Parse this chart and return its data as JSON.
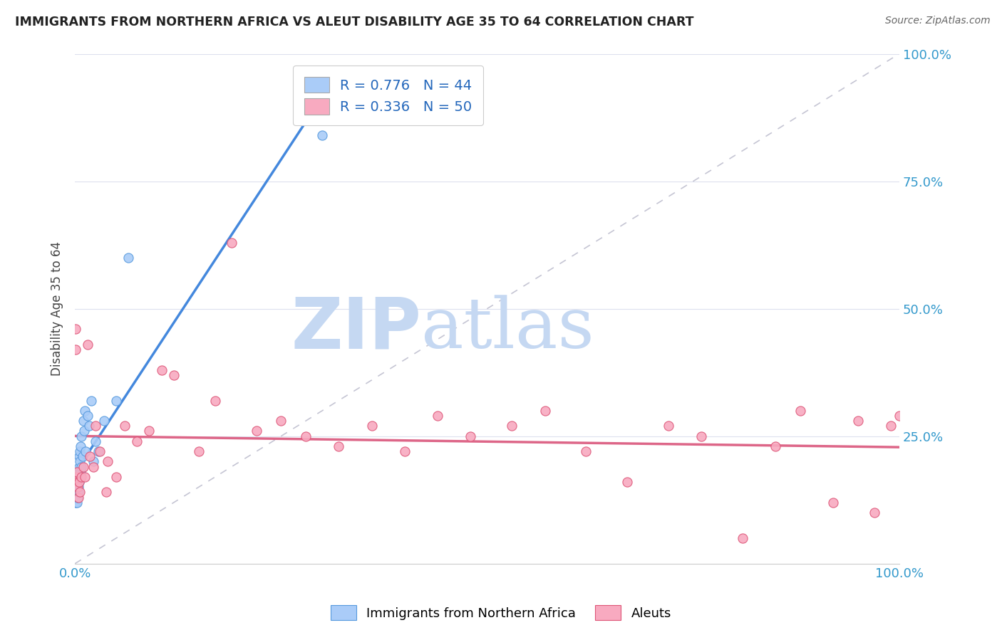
{
  "title": "IMMIGRANTS FROM NORTHERN AFRICA VS ALEUT DISABILITY AGE 35 TO 64 CORRELATION CHART",
  "source": "Source: ZipAtlas.com",
  "ylabel": "Disability Age 35 to 64",
  "legend_label1": "Immigrants from Northern Africa",
  "legend_label2": "Aleuts",
  "r1": 0.776,
  "n1": 44,
  "r2": 0.336,
  "n2": 50,
  "color1": "#aaccf8",
  "color2": "#f8aac0",
  "color1_edge": "#5599dd",
  "color2_edge": "#dd5577",
  "line1_color": "#4488dd",
  "line2_color": "#dd6688",
  "diag_color": "#bbbbcc",
  "background": "#ffffff",
  "grid_color": "#dde0ee",
  "blue_points_x": [
    0.001,
    0.001,
    0.001,
    0.001,
    0.001,
    0.002,
    0.002,
    0.002,
    0.002,
    0.002,
    0.002,
    0.003,
    0.003,
    0.003,
    0.003,
    0.004,
    0.004,
    0.004,
    0.004,
    0.005,
    0.005,
    0.005,
    0.006,
    0.006,
    0.006,
    0.007,
    0.007,
    0.008,
    0.008,
    0.009,
    0.01,
    0.011,
    0.012,
    0.013,
    0.015,
    0.017,
    0.02,
    0.022,
    0.025,
    0.028,
    0.035,
    0.05,
    0.065,
    0.3
  ],
  "blue_points_y": [
    0.12,
    0.13,
    0.14,
    0.15,
    0.16,
    0.13,
    0.14,
    0.15,
    0.16,
    0.12,
    0.17,
    0.14,
    0.15,
    0.13,
    0.16,
    0.15,
    0.17,
    0.18,
    0.14,
    0.16,
    0.19,
    0.21,
    0.17,
    0.2,
    0.22,
    0.18,
    0.23,
    0.19,
    0.25,
    0.21,
    0.28,
    0.26,
    0.3,
    0.22,
    0.29,
    0.27,
    0.32,
    0.2,
    0.24,
    0.22,
    0.28,
    0.32,
    0.6,
    0.84
  ],
  "pink_points_x": [
    0.001,
    0.001,
    0.002,
    0.002,
    0.002,
    0.003,
    0.004,
    0.005,
    0.006,
    0.008,
    0.01,
    0.012,
    0.015,
    0.018,
    0.022,
    0.025,
    0.03,
    0.038,
    0.04,
    0.05,
    0.06,
    0.075,
    0.09,
    0.105,
    0.12,
    0.15,
    0.17,
    0.19,
    0.22,
    0.25,
    0.28,
    0.32,
    0.36,
    0.4,
    0.44,
    0.48,
    0.53,
    0.57,
    0.62,
    0.67,
    0.72,
    0.76,
    0.81,
    0.85,
    0.88,
    0.92,
    0.95,
    0.97,
    0.99,
    1.0
  ],
  "pink_points_y": [
    0.46,
    0.42,
    0.17,
    0.18,
    0.16,
    0.15,
    0.13,
    0.16,
    0.14,
    0.17,
    0.19,
    0.17,
    0.43,
    0.21,
    0.19,
    0.27,
    0.22,
    0.14,
    0.2,
    0.17,
    0.27,
    0.24,
    0.26,
    0.38,
    0.37,
    0.22,
    0.32,
    0.63,
    0.26,
    0.28,
    0.25,
    0.23,
    0.27,
    0.22,
    0.29,
    0.25,
    0.27,
    0.3,
    0.22,
    0.16,
    0.27,
    0.25,
    0.05,
    0.23,
    0.3,
    0.12,
    0.28,
    0.1,
    0.27,
    0.29
  ],
  "ylim": [
    0,
    1.0
  ],
  "xlim": [
    0,
    1.0
  ],
  "yticks": [
    0.0,
    0.25,
    0.5,
    0.75,
    1.0
  ],
  "ytick_labels": [
    "",
    "25.0%",
    "50.0%",
    "75.0%",
    "100.0%"
  ],
  "xtick_labels": [
    "0.0%",
    "100.0%"
  ],
  "watermark_zip": "ZIP",
  "watermark_atlas": "atlas",
  "watermark_color_zip": "#c5d8f2",
  "watermark_color_atlas": "#c5d8f2"
}
